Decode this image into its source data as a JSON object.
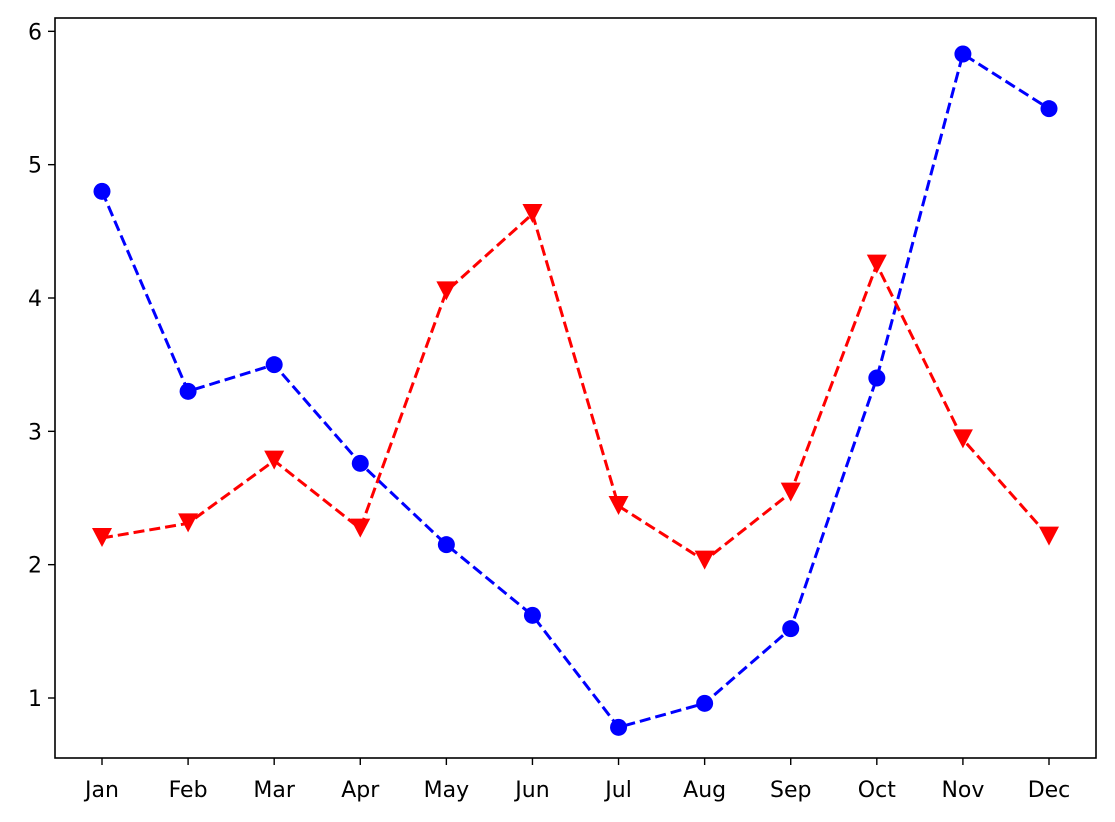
{
  "chart_data": {
    "type": "line",
    "categories": [
      "Jan",
      "Feb",
      "Mar",
      "Apr",
      "May",
      "Jun",
      "Jul",
      "Aug",
      "Sep",
      "Oct",
      "Nov",
      "Dec"
    ],
    "series": [
      {
        "color": "#0000ff",
        "marker": "circle",
        "linestyle": "dashed",
        "values": [
          4.8,
          3.3,
          3.5,
          2.76,
          2.15,
          1.62,
          0.78,
          0.96,
          1.52,
          3.4,
          5.83,
          5.42
        ]
      },
      {
        "color": "#ff0000",
        "marker": "triangle-down",
        "linestyle": "dashed",
        "values": [
          2.2,
          2.31,
          2.78,
          2.27,
          4.05,
          4.63,
          2.44,
          2.03,
          2.54,
          4.25,
          2.94,
          2.21
        ]
      }
    ],
    "title": "",
    "xlabel": "",
    "ylabel": "",
    "ylim": [
      0.55,
      6.1
    ],
    "yticks": [
      1,
      2,
      3,
      4,
      5,
      6
    ],
    "grid": false,
    "legend": false
  }
}
